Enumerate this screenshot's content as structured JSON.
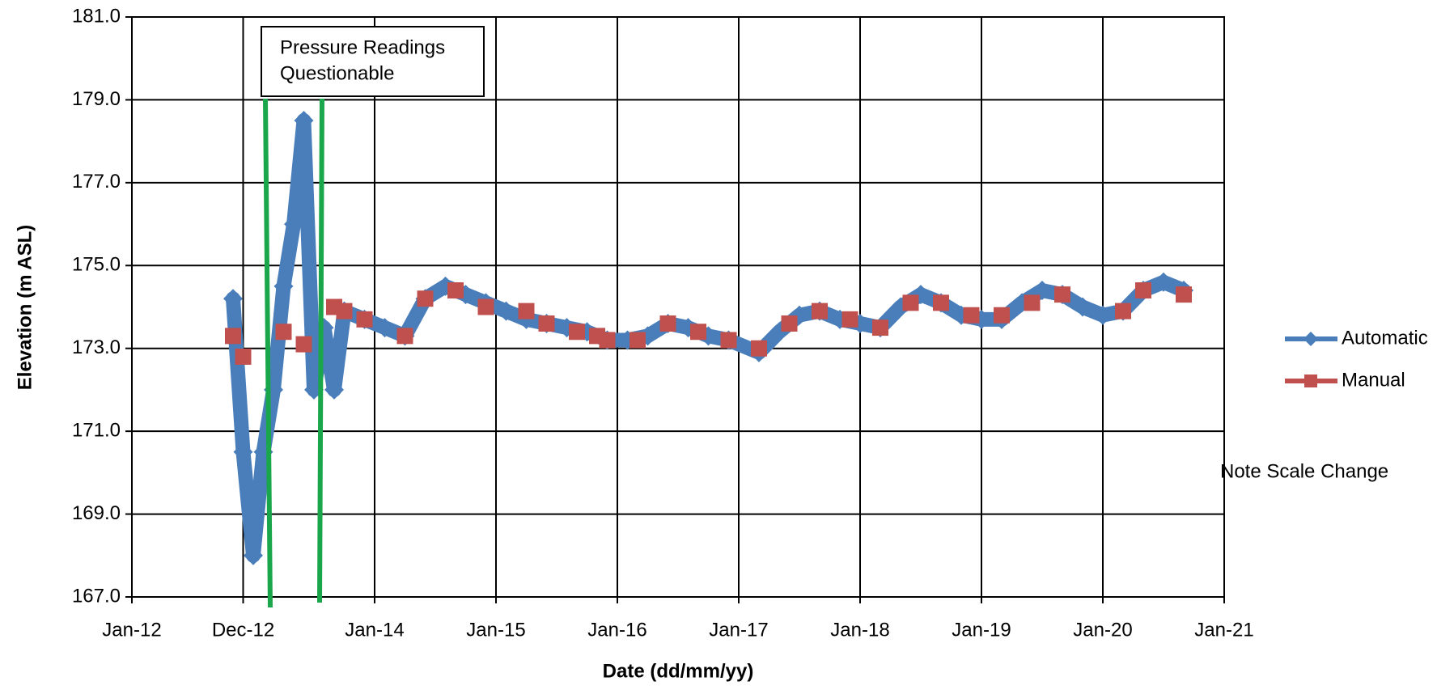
{
  "chart_data": {
    "type": "line",
    "xlabel": "Date (dd/mm/yy)",
    "ylabel": "Elevation (m ASL)",
    "xlim": [
      "2012-01",
      "2021-01"
    ],
    "xticks": [
      {
        "value": "2012-01",
        "label": "Jan-12"
      },
      {
        "value": "2012-12",
        "label": "Dec-12"
      },
      {
        "value": "2014-01",
        "label": "Jan-14"
      },
      {
        "value": "2015-01",
        "label": "Jan-15"
      },
      {
        "value": "2016-01",
        "label": "Jan-16"
      },
      {
        "value": "2017-01",
        "label": "Jan-17"
      },
      {
        "value": "2018-01",
        "label": "Jan-18"
      },
      {
        "value": "2019-01",
        "label": "Jan-19"
      },
      {
        "value": "2020-01",
        "label": "Jan-20"
      },
      {
        "value": "2021-01",
        "label": "Jan-21"
      }
    ],
    "ylim": [
      167,
      181
    ],
    "yticks": [
      {
        "value": 167,
        "label": "167.0"
      },
      {
        "value": 169,
        "label": "169.0"
      },
      {
        "value": 171,
        "label": "171.0"
      },
      {
        "value": 173,
        "label": "173.0"
      },
      {
        "value": 175,
        "label": "175.0"
      },
      {
        "value": 177,
        "label": "177.0"
      },
      {
        "value": 179,
        "label": "179.0"
      },
      {
        "value": 181,
        "label": "181.0"
      }
    ],
    "grid": true,
    "legend": "right",
    "annotations": [
      {
        "lines": [
          "Pressure  Readings",
          "Questionable"
        ]
      },
      {
        "lines": [
          "Note Scale Change"
        ]
      }
    ],
    "series": [
      {
        "name": "Automatic",
        "color": "#4a7ebb",
        "marker": "diamond",
        "x": [
          "2012-11",
          "2012-12",
          "2013-01",
          "2013-02",
          "2013-03",
          "2013-04",
          "2013-05",
          "2013-06",
          "2013-07",
          "2013-08",
          "2013-09",
          "2013-10",
          "2013-12",
          "2014-02",
          "2014-04",
          "2014-06",
          "2014-08",
          "2014-10",
          "2014-12",
          "2015-02",
          "2015-04",
          "2015-06",
          "2015-08",
          "2015-10",
          "2015-12",
          "2016-02",
          "2016-04",
          "2016-06",
          "2016-08",
          "2016-10",
          "2016-12",
          "2017-03",
          "2017-05",
          "2017-07",
          "2017-09",
          "2017-11",
          "2018-01",
          "2018-03",
          "2018-05",
          "2018-07",
          "2018-09",
          "2018-11",
          "2019-01",
          "2019-03",
          "2019-05",
          "2019-07",
          "2019-09",
          "2019-11",
          "2020-01",
          "2020-03",
          "2020-05",
          "2020-07",
          "2020-09"
        ],
        "values": [
          174.2,
          170.5,
          168.0,
          170.5,
          172.0,
          174.5,
          176.0,
          178.5,
          172.0,
          173.5,
          172.0,
          173.9,
          173.7,
          173.5,
          173.3,
          174.2,
          174.5,
          174.3,
          174.1,
          173.9,
          173.7,
          173.6,
          173.5,
          173.4,
          173.2,
          173.2,
          173.3,
          173.6,
          173.5,
          173.3,
          173.2,
          172.9,
          173.4,
          173.8,
          173.9,
          173.7,
          173.6,
          173.5,
          174.0,
          174.3,
          174.1,
          173.8,
          173.7,
          173.7,
          174.1,
          174.4,
          174.3,
          174.0,
          173.8,
          173.9,
          174.4,
          174.6,
          174.4
        ]
      },
      {
        "name": "Manual",
        "color": "#c0504d",
        "marker": "square",
        "x": [
          "2012-11",
          "2012-12",
          "2013-04",
          "2013-06",
          "2013-09",
          "2013-10",
          "2013-12",
          "2014-04",
          "2014-06",
          "2014-09",
          "2014-12",
          "2015-04",
          "2015-06",
          "2015-09",
          "2015-11",
          "2015-12",
          "2016-03",
          "2016-06",
          "2016-09",
          "2016-12",
          "2017-03",
          "2017-06",
          "2017-09",
          "2017-12",
          "2018-03",
          "2018-06",
          "2018-09",
          "2018-12",
          "2019-03",
          "2019-06",
          "2019-09",
          "2020-03",
          "2020-05",
          "2020-09"
        ],
        "values": [
          173.3,
          172.8,
          173.4,
          173.1,
          174.0,
          173.9,
          173.7,
          173.3,
          174.2,
          174.4,
          174.0,
          173.9,
          173.6,
          173.4,
          173.3,
          173.2,
          173.2,
          173.6,
          173.4,
          173.2,
          173.0,
          173.6,
          173.9,
          173.7,
          173.5,
          174.1,
          174.1,
          173.8,
          173.8,
          174.1,
          174.3,
          173.9,
          174.4,
          174.3
        ]
      }
    ]
  }
}
